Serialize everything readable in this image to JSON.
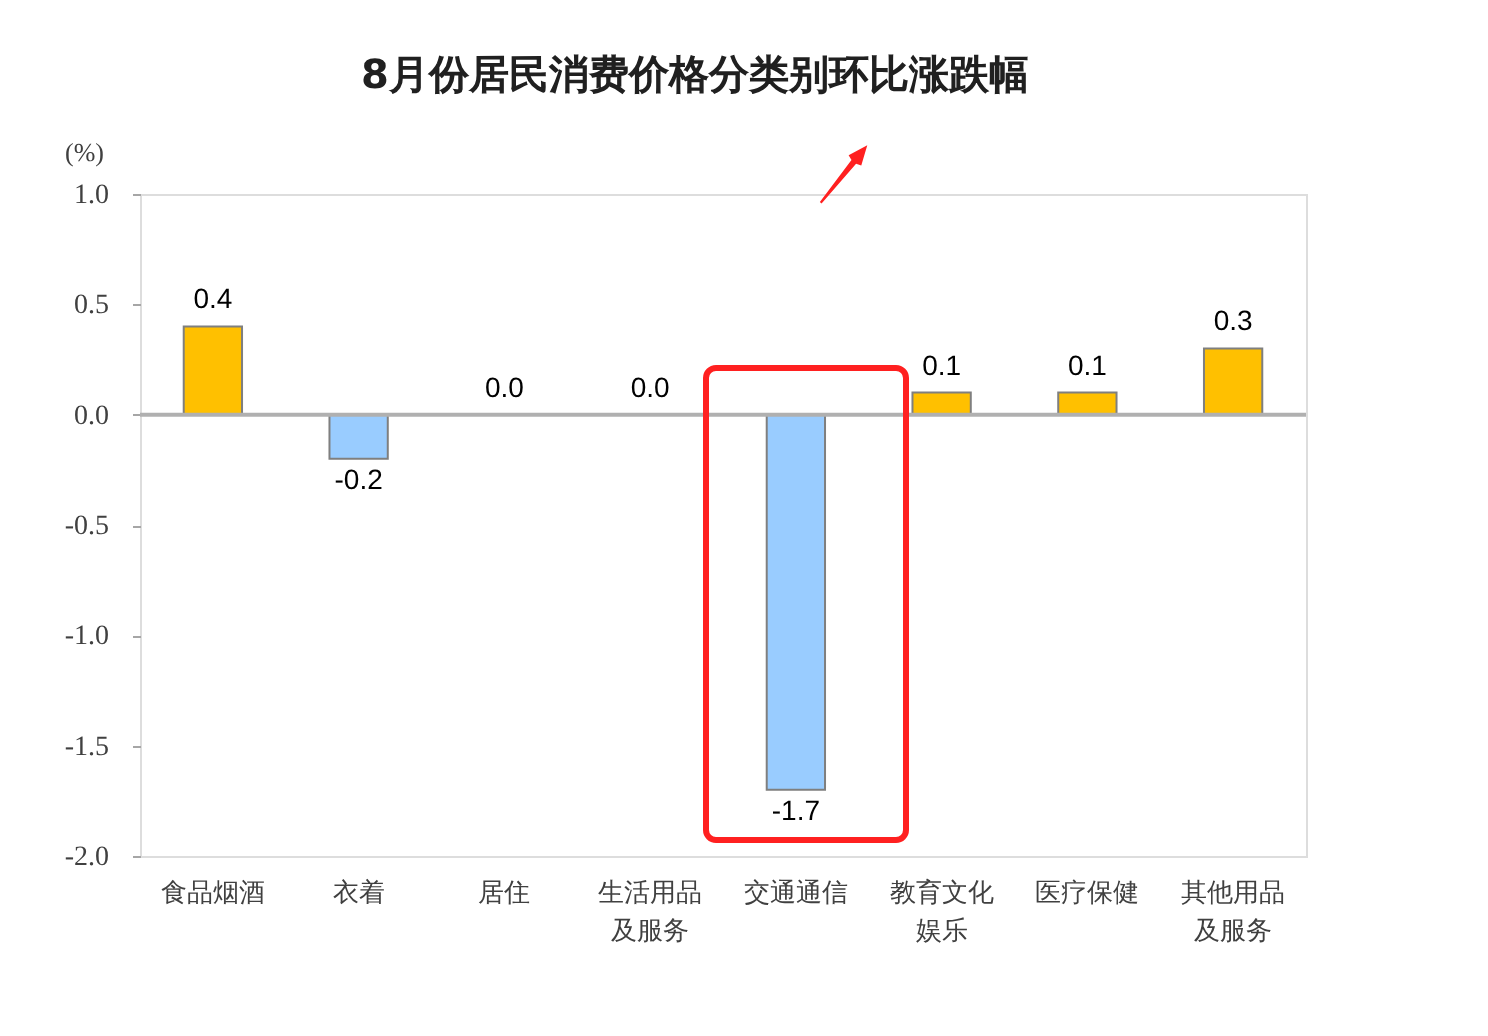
{
  "chart_data": {
    "type": "bar",
    "title": "8月份居民消费价格分类别环比涨跌幅",
    "ylabel": "(%)",
    "categories": [
      "食品烟酒",
      "衣着",
      "居住",
      "生活用品及服务",
      "交通通信",
      "教育文化娱乐",
      "医疗保健",
      "其他用品及服务"
    ],
    "values": [
      0.4,
      -0.2,
      0.0,
      0.0,
      -1.7,
      0.1,
      0.1,
      0.3
    ],
    "colors": [
      "#ffc000",
      "#99ccff",
      "#ffc000",
      "#ffc000",
      "#99ccff",
      "#ffc000",
      "#ffc000",
      "#ffc000"
    ],
    "value_labels": [
      "0.4",
      "-0.2",
      "0.0",
      "0.0",
      "-1.7",
      "0.1",
      "0.1",
      "0.3"
    ],
    "ylim": [
      -2.0,
      1.0
    ],
    "yticks": [
      {
        "value": 1,
        "label": "1.0"
      },
      {
        "value": 0.5,
        "label": "0.5"
      },
      {
        "value": 0,
        "label": "0.0"
      },
      {
        "value": -0.5,
        "label": "-0.5"
      },
      {
        "value": -1,
        "label": "-1.0"
      },
      {
        "value": -1.5,
        "label": "-1.5"
      },
      {
        "value": -2,
        "label": "-2.0"
      }
    ],
    "ref_lines": [
      {
        "axis": "y",
        "value": 0,
        "color": "#b0b0b0"
      }
    ],
    "grid": false
  }
}
